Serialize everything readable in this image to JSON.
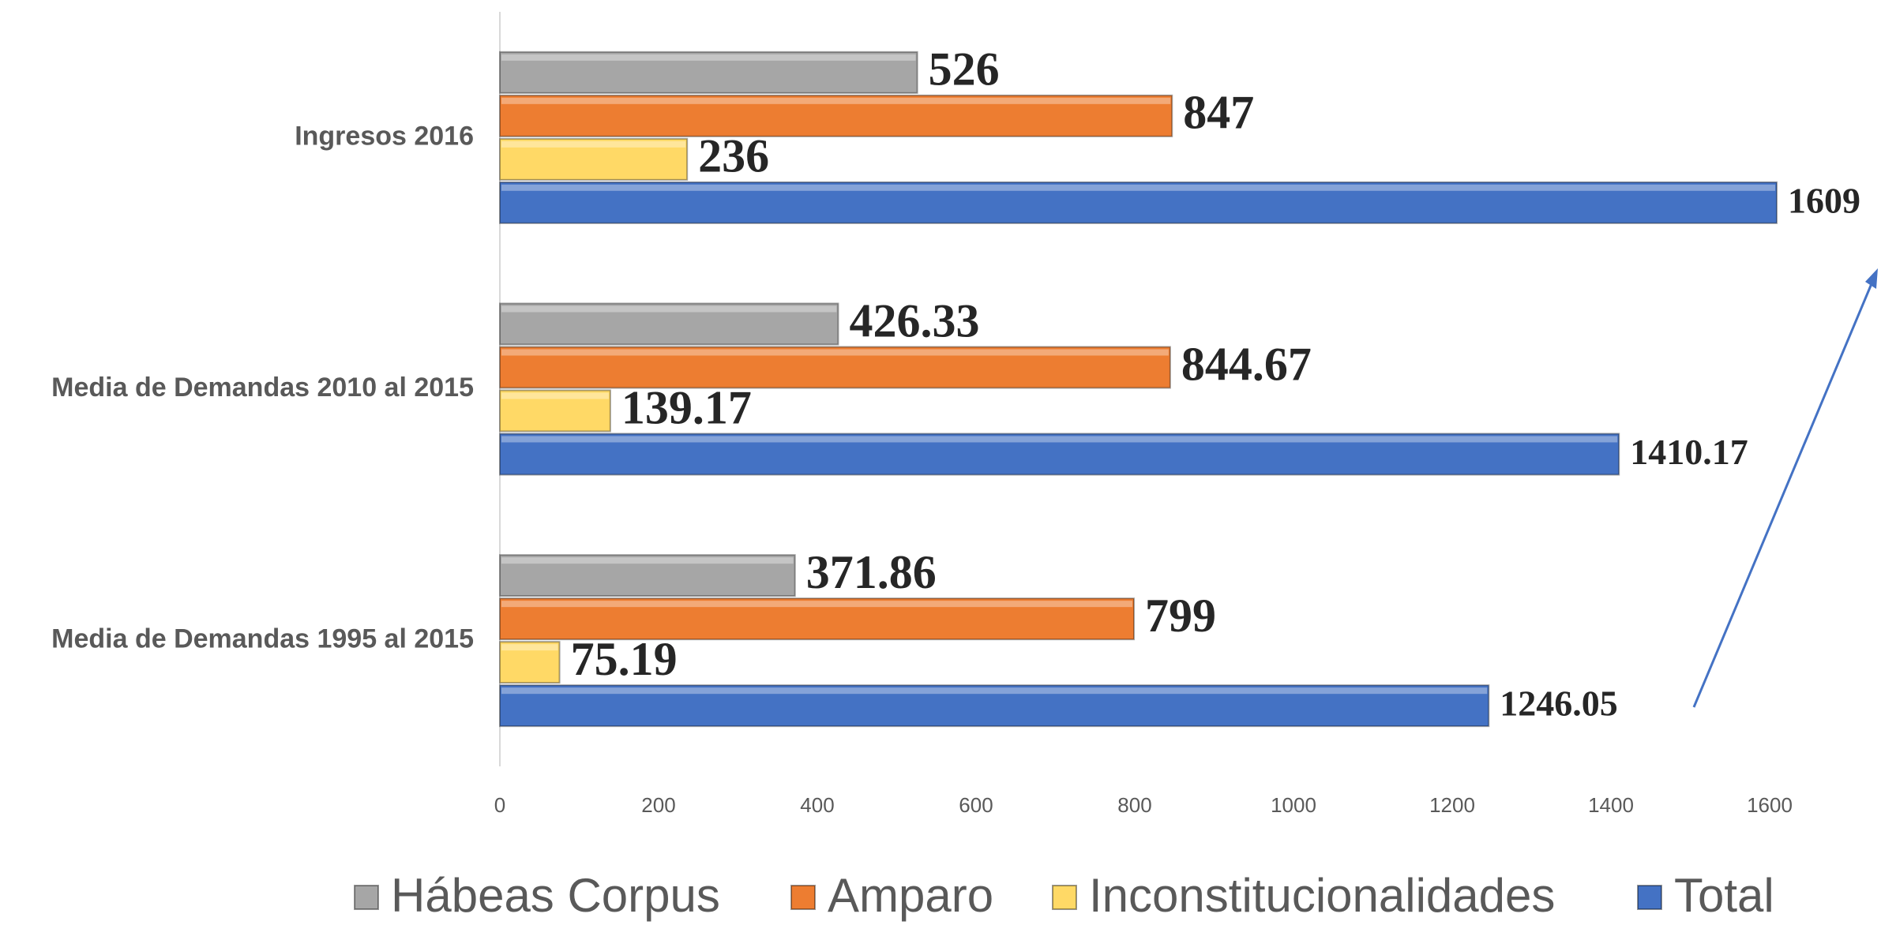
{
  "chart_data": {
    "type": "barh",
    "categories": [
      "Ingresos 2016",
      "Media de Demandas 2010 al 2015",
      "Media de Demandas 1995 al 2015"
    ],
    "series": [
      {
        "name": "Hábeas Corpus",
        "color": "#a6a6a6",
        "values": [
          526,
          426.33,
          371.86
        ]
      },
      {
        "name": "Amparo",
        "color": "#ed7d31",
        "values": [
          847,
          844.67,
          799
        ]
      },
      {
        "name": "Inconstitucionalidades",
        "color": "#ffd966",
        "values": [
          236,
          139.17,
          75.19
        ]
      },
      {
        "name": "Total",
        "color": "#4472c4",
        "values": [
          1609,
          1410.17,
          1246.05
        ]
      }
    ],
    "xlim": [
      0,
      1700
    ],
    "xticks": [
      0,
      200,
      400,
      600,
      800,
      1000,
      1200,
      1400,
      1600
    ],
    "legend": "bottom",
    "grid": false
  }
}
